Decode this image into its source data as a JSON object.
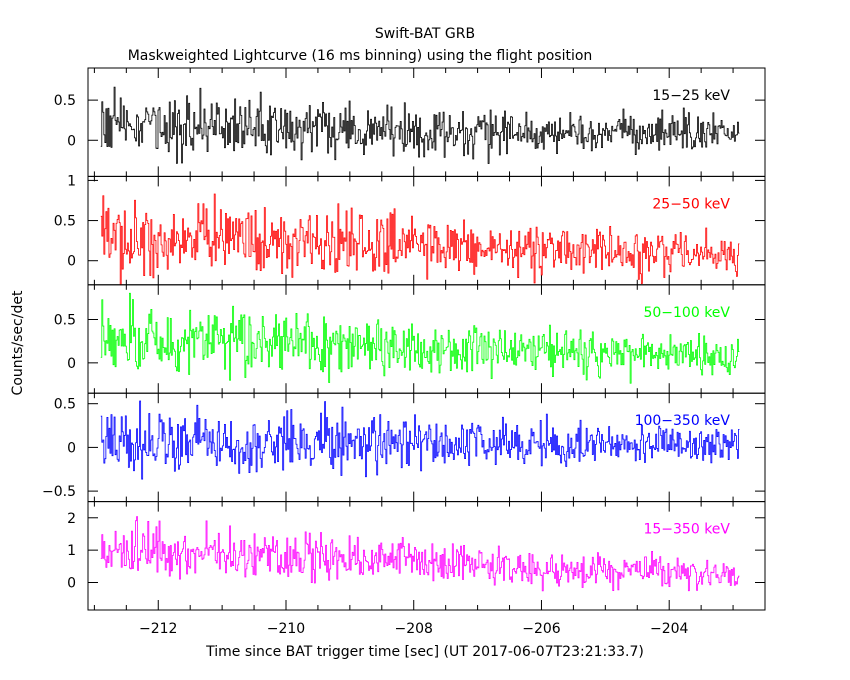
{
  "chart_data": {
    "type": "line",
    "title": "Swift-BAT GRB",
    "subtitle": "Maskweighted Lightcurve (16 ms binning) using the flight position",
    "xlabel": "Time since BAT trigger time [sec] (UT 2017-06-07T23:21:33.7)",
    "ylabel": "Counts/sec/det",
    "xlim": [
      -213.1,
      -202.5
    ],
    "data_x_range": [
      -212.9,
      -202.9
    ],
    "bin_width_sec": 0.016,
    "x_ticks": [
      -212,
      -210,
      -208,
      -206,
      -204
    ],
    "x_tick_labels": [
      "−212",
      "−210",
      "−208",
      "−206",
      "−204"
    ],
    "grid": false,
    "panels": [
      {
        "label": "15−25 keV",
        "color": "#000000",
        "ylim": [
          -0.45,
          0.9
        ],
        "y_ticks": [
          0,
          0.5
        ],
        "y_tick_labels": [
          "0",
          "0.5"
        ],
        "baseline_start": 0.18,
        "baseline_end": 0.07,
        "noise_start": 0.19,
        "noise_end": 0.11
      },
      {
        "label": "25−50 keV",
        "color": "#ff0000",
        "ylim": [
          -0.3,
          1.05
        ],
        "y_ticks": [
          0,
          0.5,
          1
        ],
        "y_tick_labels": [
          "0",
          "0.5",
          "1"
        ],
        "baseline_start": 0.33,
        "baseline_end": 0.08,
        "noise_start": 0.24,
        "noise_end": 0.12
      },
      {
        "label": "50−100 keV",
        "color": "#00ff00",
        "ylim": [
          -0.35,
          0.9
        ],
        "y_ticks": [
          0,
          0.5
        ],
        "y_tick_labels": [
          "0",
          "0.5"
        ],
        "baseline_start": 0.28,
        "baseline_end": 0.07,
        "noise_start": 0.21,
        "noise_end": 0.11
      },
      {
        "label": "100−350 keV",
        "color": "#0000ff",
        "ylim": [
          -0.62,
          0.62
        ],
        "y_ticks": [
          -0.5,
          0,
          0.5
        ],
        "y_tick_labels": [
          "−0.5",
          "0",
          "0.5"
        ],
        "baseline_start": 0.07,
        "baseline_end": 0.02,
        "noise_start": 0.19,
        "noise_end": 0.1
      },
      {
        "label": "15−350 keV",
        "color": "#ff00ff",
        "ylim": [
          -0.85,
          2.5
        ],
        "y_ticks": [
          0,
          1,
          2
        ],
        "y_tick_labels": [
          "0",
          "1",
          "2"
        ],
        "baseline_start": 1.0,
        "baseline_end": 0.2,
        "noise_start": 0.42,
        "noise_end": 0.22
      }
    ]
  }
}
